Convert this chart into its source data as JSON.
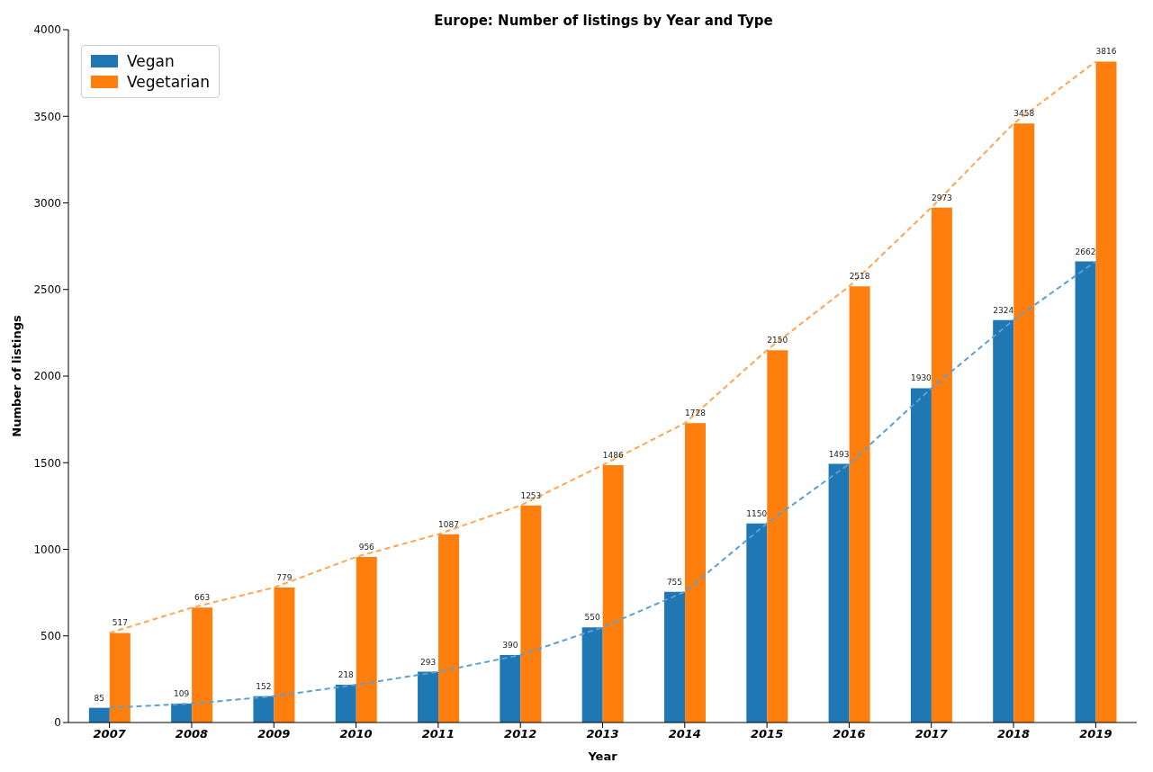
{
  "chart_data": {
    "type": "bar",
    "title": "Europe: Number of listings by Year and Type",
    "xlabel": "Year",
    "ylabel": "Number of listings",
    "categories": [
      "2007",
      "2008",
      "2009",
      "2010",
      "2011",
      "2012",
      "2013",
      "2014",
      "2015",
      "2016",
      "2017",
      "2018",
      "2019"
    ],
    "series": [
      {
        "name": "Vegan",
        "color": "#1f77b4",
        "values": [
          85,
          109,
          152,
          218,
          293,
          390,
          550,
          755,
          1150,
          1493,
          1930,
          2324,
          2662
        ],
        "value_labels": [
          "85",
          "109",
          "152",
          "218",
          "293",
          "390",
          "550",
          "755",
          "1150",
          "1493",
          "1930",
          "2324",
          "2662"
        ]
      },
      {
        "name": "Vegetarian",
        "color": "#ff7f0e",
        "values": [
          517,
          663,
          779,
          956,
          1087,
          1253,
          1486,
          1728,
          2150,
          2518,
          2973,
          3458,
          3816
        ],
        "value_labels": [
          "517",
          "663",
          "779",
          "956",
          "1087",
          "1253",
          "1486",
          "1728",
          "2150",
          "2518",
          "2973",
          "3458",
          "3816"
        ]
      },
      {
        "type": "line",
        "color": "#5e9fd2",
        "line_style": "dashed",
        "marker": "none",
        "values": [
          85,
          109,
          152,
          218,
          293,
          390,
          550,
          755,
          1150,
          1493,
          1930,
          2324,
          2662
        ]
      },
      {
        "type": "line",
        "color": "#ffa552",
        "line_style": "dashed",
        "marker": "none",
        "values": [
          517,
          663,
          779,
          956,
          1087,
          1253,
          1486,
          1728,
          2150,
          2518,
          2973,
          3458,
          3816
        ]
      }
    ],
    "ylim": [
      0,
      4000
    ],
    "yticks": [
      0,
      500,
      1000,
      1500,
      2000,
      2500,
      3000,
      3500,
      4000
    ],
    "legend": "top left"
  }
}
